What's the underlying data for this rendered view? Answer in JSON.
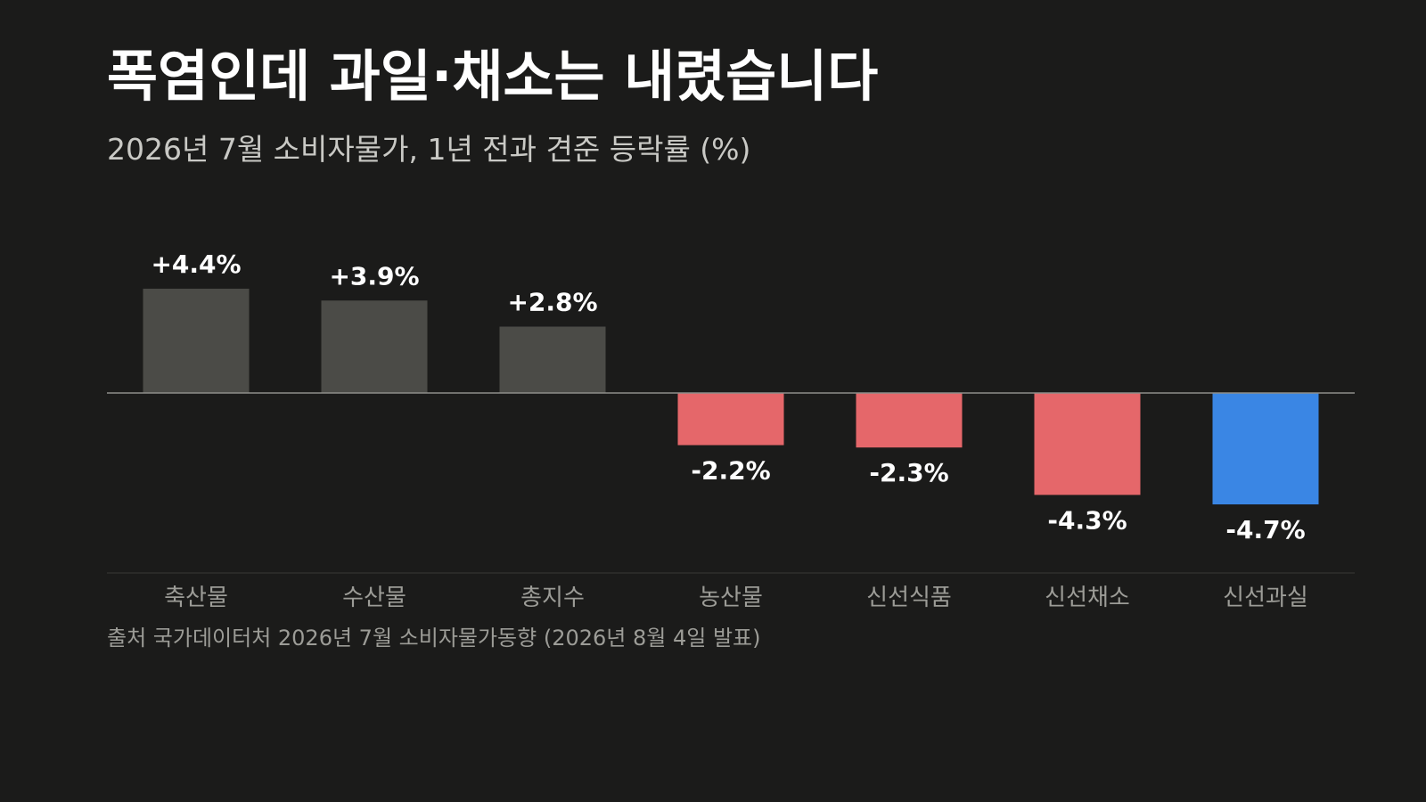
{
  "title": "폭염인데 과일·채소는 내렸습니다",
  "subtitle": "2026년 7월 소비자물가, 1년 전과 견준 등락률 (%)",
  "source": "출처 국가데이터처 2026년 7월 소비자물가동향 (2026년 8월 4일 발표)",
  "colors": {
    "background": "#1b1b1a",
    "positive_bar": "#4b4b47",
    "negative_bar": "#e5676a",
    "highlight_bar": "#3a86e4",
    "baseline": "#8e8e8a",
    "divider": "#3a3a37"
  },
  "chart_data": {
    "type": "bar",
    "categories": [
      "축산물",
      "수산물",
      "총지수",
      "농산물",
      "신선식품",
      "신선채소",
      "신선과실"
    ],
    "values": [
      4.4,
      3.9,
      2.8,
      -2.2,
      -2.3,
      -4.3,
      -4.7
    ],
    "value_labels": [
      "+4.4%",
      "+3.9%",
      "+2.8%",
      "-2.2%",
      "-2.3%",
      "-4.3%",
      "-4.7%"
    ],
    "highlight": "신선과실",
    "title": "폭염인데 과일·채소는 내렸습니다",
    "subtitle": "2026년 7월 소비자물가, 1년 전과 견준 등락률 (%)",
    "ylim": [
      -4.7,
      4.4
    ],
    "grid": false,
    "legend": "none"
  }
}
